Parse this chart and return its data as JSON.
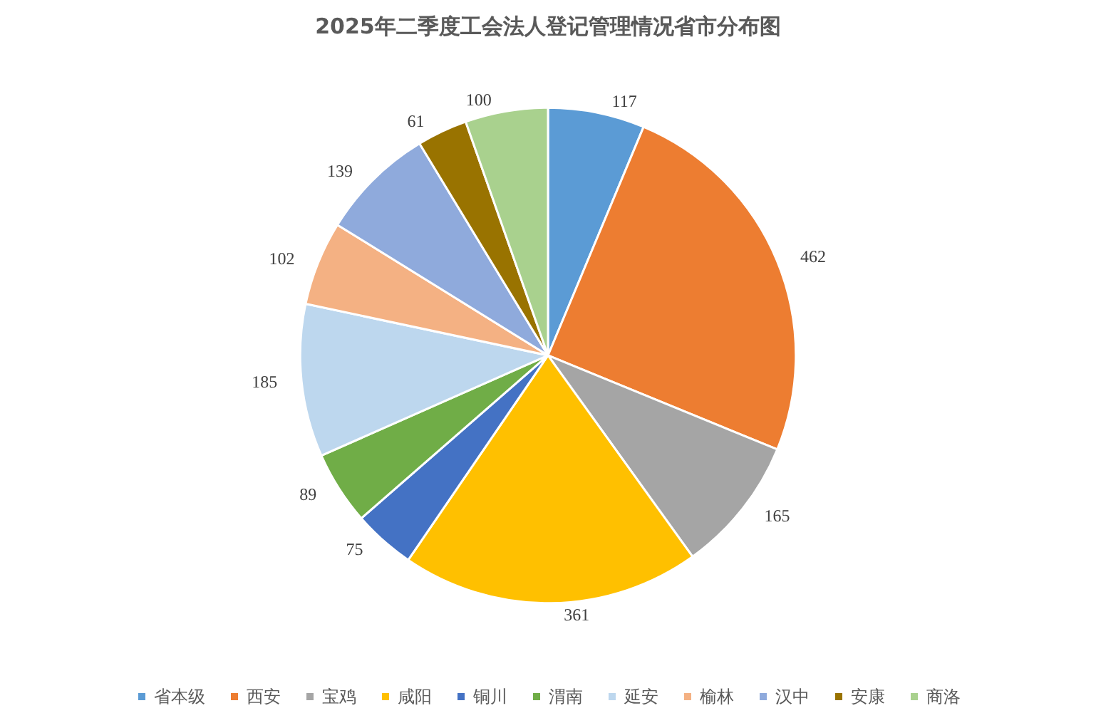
{
  "chart_data": {
    "type": "pie",
    "title": "2025年二季度工会法人登记管理情况省市分布图",
    "categories": [
      "省本级",
      "西安",
      "宝鸡",
      "咸阳",
      "铜川",
      "渭南",
      "延安",
      "榆林",
      "汉中",
      "安康",
      "商洛"
    ],
    "values": [
      117,
      462,
      165,
      361,
      75,
      89,
      185,
      102,
      139,
      61,
      100
    ],
    "colors": [
      "#5b9bd5",
      "#ed7d31",
      "#a5a5a5",
      "#ffc000",
      "#4472c4",
      "#70ad47",
      "#bdd7ee",
      "#f4b183",
      "#8faadc",
      "#997300",
      "#a9d18e"
    ],
    "data_labels": true,
    "legend": "bottom"
  }
}
